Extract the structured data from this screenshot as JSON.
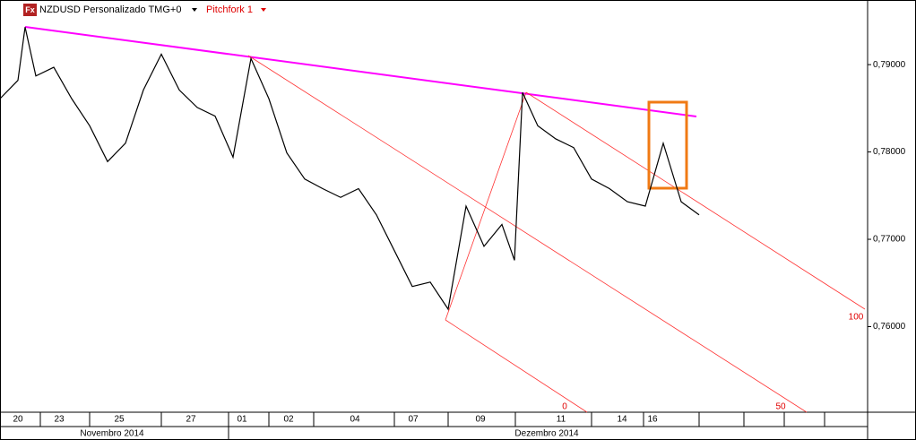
{
  "header": {
    "icon": "Fx",
    "symbol": "NZDUSD Personalizado TMG+0",
    "study": "Pitchfork 1"
  },
  "chart_data": {
    "type": "line",
    "x": [
      0,
      2,
      2.8,
      4,
      6,
      8,
      10,
      12,
      14,
      16,
      18,
      20,
      22,
      24,
      26,
      28,
      30,
      32,
      34,
      36,
      38,
      40,
      42,
      44,
      46,
      48,
      50,
      52,
      54,
      56,
      57.4,
      58.3,
      60,
      62,
      64,
      66,
      68,
      70,
      72,
      74,
      76,
      78
    ],
    "series": [
      {
        "color": "#000000",
        "values": [
          0.7861,
          0.7882,
          0.7943,
          0.7887,
          0.7897,
          0.7861,
          0.783,
          0.7789,
          0.781,
          0.7871,
          0.7912,
          0.7871,
          0.7851,
          0.7841,
          0.7794,
          0.7907,
          0.7861,
          0.7799,
          0.7769,
          0.7758,
          0.7748,
          0.7758,
          0.7728,
          0.7687,
          0.7646,
          0.7651,
          0.762,
          0.7738,
          0.7692,
          0.7717,
          0.7676,
          0.7868,
          0.783,
          0.7815,
          0.7805,
          0.7769,
          0.7758,
          0.7743,
          0.7738,
          0.781,
          0.7743,
          0.7728
        ]
      }
    ],
    "xlim": [
      0,
      96.8
    ],
    "xticks": [
      {
        "value": 2,
        "label": "20"
      },
      {
        "value": 6.6,
        "label": "23"
      },
      {
        "value": 13.3,
        "label": "25"
      },
      {
        "value": 21.3,
        "label": "27"
      },
      {
        "value": 27,
        "label": "01"
      },
      {
        "value": 32.2,
        "label": "02"
      },
      {
        "value": 39.6,
        "label": "04"
      },
      {
        "value": 46.1,
        "label": "07"
      },
      {
        "value": 53.6,
        "label": "09"
      },
      {
        "value": 62.6,
        "label": "11"
      },
      {
        "value": 69.4,
        "label": "14"
      },
      {
        "value": 72.8,
        "label": "16"
      }
    ],
    "months": [
      {
        "value": 12.5,
        "label": "Novembro 2014"
      },
      {
        "value": 61,
        "label": "Dezembro 2014"
      }
    ],
    "ylim": [
      0.7502,
      0.7974
    ],
    "yticks": [
      {
        "value": 0.79,
        "label": "0,79000"
      },
      {
        "value": 0.78,
        "label": "0,78000"
      },
      {
        "value": 0.77,
        "label": "0,77000"
      },
      {
        "value": 0.76,
        "label": "0,76000"
      }
    ],
    "annotations": [
      "100",
      "0",
      "50"
    ]
  }
}
